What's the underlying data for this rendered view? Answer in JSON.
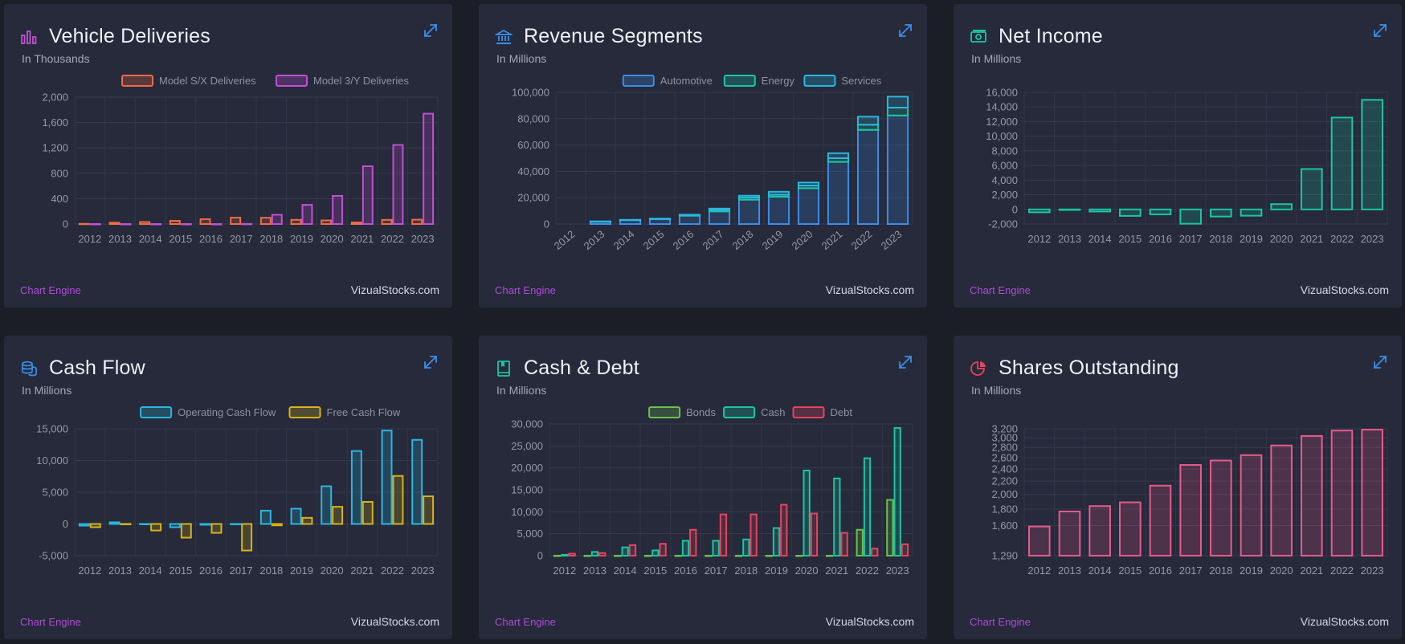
{
  "footer": {
    "engine": "Chart Engine",
    "site": "VizualStocks.com"
  },
  "cards": [
    {
      "title": "Vehicle Deliveries",
      "subtitle": "In Thousands",
      "icon": "bar-chart-icon",
      "icon_color": "#c24fd6",
      "chart_data": {
        "type": "bar",
        "stacked": false,
        "log_scale": false,
        "categories": [
          "2012",
          "2013",
          "2014",
          "2015",
          "2016",
          "2017",
          "2018",
          "2019",
          "2020",
          "2021",
          "2022",
          "2023"
        ],
        "ylim": [
          0,
          2000
        ],
        "ticks": [
          0,
          400,
          800,
          1200,
          1600,
          2000
        ],
        "tick_labels": [
          "0",
          "400",
          "800",
          "1,200",
          "1,600",
          "2,000"
        ],
        "x_rotated": false,
        "series": [
          {
            "name": "Model S/X Deliveries",
            "color": "#f06b45",
            "values": [
              3,
              22,
              32,
              50,
              76,
              101,
              99,
              66,
              57,
              25,
              66,
              69
            ]
          },
          {
            "name": "Model 3/Y Deliveries",
            "color": "#c24fd6",
            "values": [
              0,
              0,
              0,
              0,
              0,
              2,
              146,
              302,
              443,
              911,
              1247,
              1740
            ]
          }
        ]
      }
    },
    {
      "title": "Revenue Segments",
      "subtitle": "In Millions",
      "icon": "bank-icon",
      "icon_color": "#3a8ee8",
      "chart_data": {
        "type": "bar",
        "stacked": true,
        "log_scale": false,
        "categories": [
          "2012",
          "2013",
          "2014",
          "2015",
          "2016",
          "2017",
          "2018",
          "2019",
          "2020",
          "2021",
          "2022",
          "2023"
        ],
        "ylim": [
          0,
          100000
        ],
        "ticks": [
          0,
          20000,
          40000,
          60000,
          80000,
          100000
        ],
        "tick_labels": [
          "0",
          "20,000",
          "40,000",
          "60,000",
          "80,000",
          "100,000"
        ],
        "x_rotated": true,
        "series": [
          {
            "name": "Automotive",
            "color": "#3a8ee8",
            "values": [
              0,
              1900,
              3000,
              3700,
              6400,
              9600,
              18500,
              20800,
              27200,
              47200,
              71500,
              82400
            ]
          },
          {
            "name": "Energy",
            "color": "#19c6a6",
            "values": [
              0,
              0,
              0,
              0,
              200,
              1100,
              1600,
              1500,
              2000,
              2800,
              3900,
              6000
            ]
          },
          {
            "name": "Services",
            "color": "#2ab7e0",
            "values": [
              0,
              100,
              200,
              400,
              500,
              1000,
              1400,
              2200,
              2300,
              3800,
              6100,
              8300
            ]
          }
        ]
      }
    },
    {
      "title": "Net Income",
      "subtitle": "In Millions",
      "icon": "money-icon",
      "icon_color": "#19c6a6",
      "chart_data": {
        "type": "bar",
        "stacked": false,
        "log_scale": false,
        "categories": [
          "2012",
          "2013",
          "2014",
          "2015",
          "2016",
          "2017",
          "2018",
          "2019",
          "2020",
          "2021",
          "2022",
          "2023"
        ],
        "ylim": [
          -2000,
          16000
        ],
        "ticks": [
          -2000,
          0,
          2000,
          4000,
          6000,
          8000,
          10000,
          12000,
          14000,
          16000
        ],
        "tick_labels": [
          "-2,000",
          "0",
          "2,000",
          "4,000",
          "6,000",
          "8,000",
          "10,000",
          "12,000",
          "14,000",
          "16,000"
        ],
        "x_rotated": false,
        "series": [
          {
            "name": "Net Income",
            "color": "#19c6a6",
            "values": [
              -396,
              -74,
              -294,
              -889,
              -675,
              -1961,
              -976,
              -862,
              721,
              5519,
              12556,
              14974
            ]
          }
        ]
      }
    },
    {
      "title": "Cash Flow",
      "subtitle": "In Millions",
      "icon": "coins-icon",
      "icon_color": "#3a8ee8",
      "chart_data": {
        "type": "bar",
        "stacked": false,
        "log_scale": false,
        "categories": [
          "2012",
          "2013",
          "2014",
          "2015",
          "2016",
          "2017",
          "2018",
          "2019",
          "2020",
          "2021",
          "2022",
          "2023"
        ],
        "ylim": [
          -5000,
          15000
        ],
        "ticks": [
          -5000,
          0,
          5000,
          10000,
          15000
        ],
        "tick_labels": [
          "-5,000",
          "0",
          "5,000",
          "10,000",
          "15,000"
        ],
        "x_rotated": false,
        "series": [
          {
            "name": "Operating Cash Flow",
            "color": "#2ab7e0",
            "values": [
              -266,
              258,
              -57,
              -524,
              -124,
              -61,
              2098,
              2405,
              5943,
              11497,
              14724,
              13256
            ]
          },
          {
            "name": "Free Cash Flow",
            "color": "#d7b31a",
            "values": [
              -508,
              -5,
              -1027,
              -2159,
              -1406,
              -4185,
              -222,
              968,
              2701,
              3483,
              7566,
              4358
            ]
          }
        ]
      }
    },
    {
      "title": "Cash & Debt",
      "subtitle": "In Millions",
      "icon": "book-icon",
      "icon_color": "#19c6a6",
      "chart_data": {
        "type": "bar",
        "stacked": false,
        "log_scale": false,
        "categories": [
          "2012",
          "2013",
          "2014",
          "2015",
          "2016",
          "2017",
          "2018",
          "2019",
          "2020",
          "2021",
          "2022",
          "2023"
        ],
        "ylim": [
          0,
          30000
        ],
        "ticks": [
          0,
          5000,
          10000,
          15000,
          20000,
          25000,
          30000
        ],
        "tick_labels": [
          "0",
          "5,000",
          "10,000",
          "15,000",
          "20,000",
          "25,000",
          "30,000"
        ],
        "x_rotated": false,
        "series": [
          {
            "name": "Bonds",
            "color": "#6cc04a",
            "values": [
              0,
              0,
              0,
              0,
              0,
              0,
              0,
              0,
              0,
              0,
              5900,
              12700
            ]
          },
          {
            "name": "Cash",
            "color": "#19c6a6",
            "values": [
              200,
              850,
              1900,
              1200,
              3400,
              3400,
              3700,
              6300,
              19400,
              17600,
              22200,
              29100
            ]
          },
          {
            "name": "Debt",
            "color": "#e8435e",
            "values": [
              450,
              600,
              2400,
              2700,
              5900,
              9400,
              9400,
              11600,
              9600,
              5200,
              1600,
              2600
            ]
          }
        ]
      }
    },
    {
      "title": "Shares Outstanding",
      "subtitle": "In Millions",
      "icon": "pie-chart-icon",
      "icon_color": "#e8435e",
      "chart_data": {
        "type": "bar",
        "stacked": false,
        "log_scale": true,
        "categories": [
          "2012",
          "2013",
          "2014",
          "2015",
          "2016",
          "2017",
          "2018",
          "2019",
          "2020",
          "2021",
          "2022",
          "2023"
        ],
        "ylim": [
          1290,
          3200
        ],
        "ticks": [
          1290,
          1600,
          1800,
          2000,
          2200,
          2400,
          2600,
          2800,
          3000,
          3200
        ],
        "tick_labels": [
          "1,290",
          "1,600",
          "1,800",
          "2,000",
          "2,200",
          "2,400",
          "2,600",
          "2,800",
          "3,000",
          "3,200"
        ],
        "x_rotated": false,
        "series": [
          {
            "name": "Shares Outstanding",
            "color": "#e85a8c",
            "values": [
              1590,
              1770,
              1840,
              1890,
              2130,
              2470,
              2550,
              2650,
              2840,
              3040,
              3160,
              3180
            ]
          }
        ]
      }
    }
  ]
}
